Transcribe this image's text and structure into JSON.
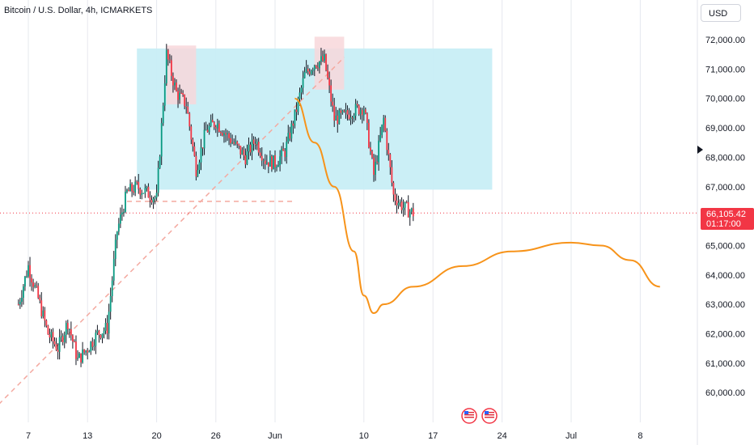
{
  "header": {
    "title": "Bitcoin / U.S. Dollar, 4h, ICMARKETS"
  },
  "currency_button": "USD",
  "last_price": {
    "value": "66,105.42",
    "countdown": "01:17:00",
    "bg_color": "#f23645"
  },
  "colors": {
    "up": "#089981",
    "down": "#f23645",
    "zone": "#c8eef5",
    "supply": "#f8d7da",
    "projection": "#f7931a",
    "trendline": "#f4a9a0",
    "grid": "#e6e8ee"
  },
  "icons": [
    "us-flag-event-icon",
    "us-flag-event-icon",
    "arrow-right-icon"
  ],
  "chart_data": {
    "type": "candlestick",
    "title": "Bitcoin / U.S. Dollar, 4h, ICMARKETS",
    "y_ticks": [
      "72,000.00",
      "71,000.00",
      "70,000.00",
      "69,000.00",
      "68,000.00",
      "67,000.00",
      "65,000.00",
      "64,000.00",
      "63,000.00",
      "62,000.00",
      "61,000.00",
      "60,000.00"
    ],
    "x_ticks": [
      "7",
      "13",
      "20",
      "26",
      "Jun",
      "10",
      "17",
      "24",
      "Jul",
      "8"
    ],
    "ylim": [
      59500,
      72500
    ],
    "anchors": [
      [
        "May 6",
        63000
      ],
      [
        "May 7",
        64300
      ],
      [
        "May 8",
        63200
      ],
      [
        "May 9",
        62000
      ],
      [
        "May 10",
        61500
      ],
      [
        "May 11",
        62400
      ],
      [
        "May 12",
        61100
      ],
      [
        "May 13",
        61500
      ],
      [
        "May 14",
        62000
      ],
      [
        "May 15",
        62200
      ],
      [
        "May 16",
        65500
      ],
      [
        "May 17",
        66800
      ],
      [
        "May 18",
        67000
      ],
      [
        "May 19",
        66800
      ],
      [
        "May 20",
        66600
      ],
      [
        "May 21",
        71500
      ],
      [
        "May 22",
        70200
      ],
      [
        "May 23",
        69800
      ],
      [
        "May 24",
        67600
      ],
      [
        "May 25",
        68900
      ],
      [
        "May 26",
        69200
      ],
      [
        "May 27",
        68800
      ],
      [
        "May 28",
        68400
      ],
      [
        "May 29",
        68000
      ],
      [
        "May 30",
        68600
      ],
      [
        "May 31",
        67900
      ],
      [
        "Jun 1",
        67800
      ],
      [
        "Jun 2",
        68200
      ],
      [
        "Jun 3",
        69400
      ],
      [
        "Jun 4",
        70800
      ],
      [
        "Jun 5",
        71200
      ],
      [
        "Jun 6",
        71300
      ],
      [
        "Jun 7",
        69300
      ],
      [
        "Jun 8",
        69400
      ],
      [
        "Jun 9",
        69600
      ],
      [
        "Jun 10",
        69700
      ],
      [
        "Jun 11",
        67400
      ],
      [
        "Jun 12",
        69300
      ],
      [
        "Jun 13",
        66700
      ],
      [
        "Jun 14",
        66300
      ],
      [
        "Jun 15",
        66100
      ]
    ],
    "projection": [
      [
        "Jun 3",
        70000
      ],
      [
        "Jun 5",
        68500
      ],
      [
        "Jun 7",
        67000
      ],
      [
        "Jun 9",
        64800
      ],
      [
        "Jun 10",
        63300
      ],
      [
        "Jun 11",
        62700
      ],
      [
        "Jun 12",
        63000
      ],
      [
        "Jun 15",
        63600
      ],
      [
        "Jun 20",
        64300
      ],
      [
        "Jun 25",
        64800
      ],
      [
        "Jul 1",
        65100
      ],
      [
        "Jul 4",
        65000
      ],
      [
        "Jul 7",
        64500
      ],
      [
        "Jul 10",
        63600
      ]
    ],
    "zones": [
      {
        "name": "range",
        "from": "May 18",
        "to": "Jun 23",
        "low": 66900,
        "high": 71700
      },
      {
        "name": "supply-left",
        "from": "May 21",
        "to": "May 24",
        "low": 69800,
        "high": 71800
      },
      {
        "name": "supply-right",
        "from": "Jun 5",
        "to": "Jun 8",
        "low": 70300,
        "high": 72100
      }
    ],
    "trendline": [
      [
        "May 4",
        59600
      ],
      [
        "Jun 8",
        71400
      ]
    ],
    "support": {
      "from": "May 17",
      "to": "Jun 3",
      "value": 66500
    },
    "grid": true
  }
}
